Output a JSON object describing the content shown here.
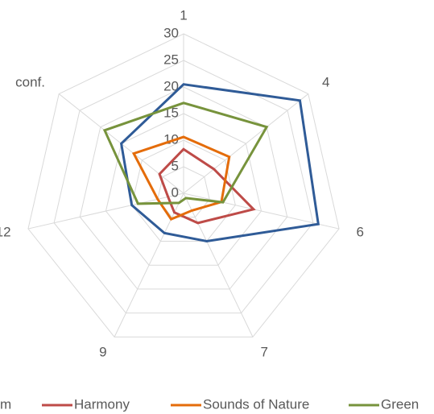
{
  "chart_data": {
    "type": "radar",
    "categories": [
      "1",
      "4",
      "6",
      "7",
      "9",
      "12",
      "conf."
    ],
    "ylim": [
      0,
      30
    ],
    "yticks": [
      0,
      5,
      10,
      15,
      20,
      25,
      30
    ],
    "grid": true,
    "series": [
      {
        "name": "m",
        "color": "#2f5b97",
        "values": [
          20.5,
          28,
          26,
          10,
          8.3,
          10,
          15
        ]
      },
      {
        "name": "Harmony",
        "color": "#be4b48",
        "values": [
          8.3,
          7.3,
          13.5,
          6.2,
          4,
          3,
          5.8
        ]
      },
      {
        "name": "Sounds of Nature",
        "color": "#e46c0a",
        "values": [
          10.6,
          11,
          7.3,
          3.6,
          5.4,
          5,
          12
        ]
      },
      {
        "name": "Green",
        "color": "#77933c",
        "values": [
          17,
          20,
          7.6,
          1,
          2,
          8.8,
          19
        ]
      }
    ]
  }
}
